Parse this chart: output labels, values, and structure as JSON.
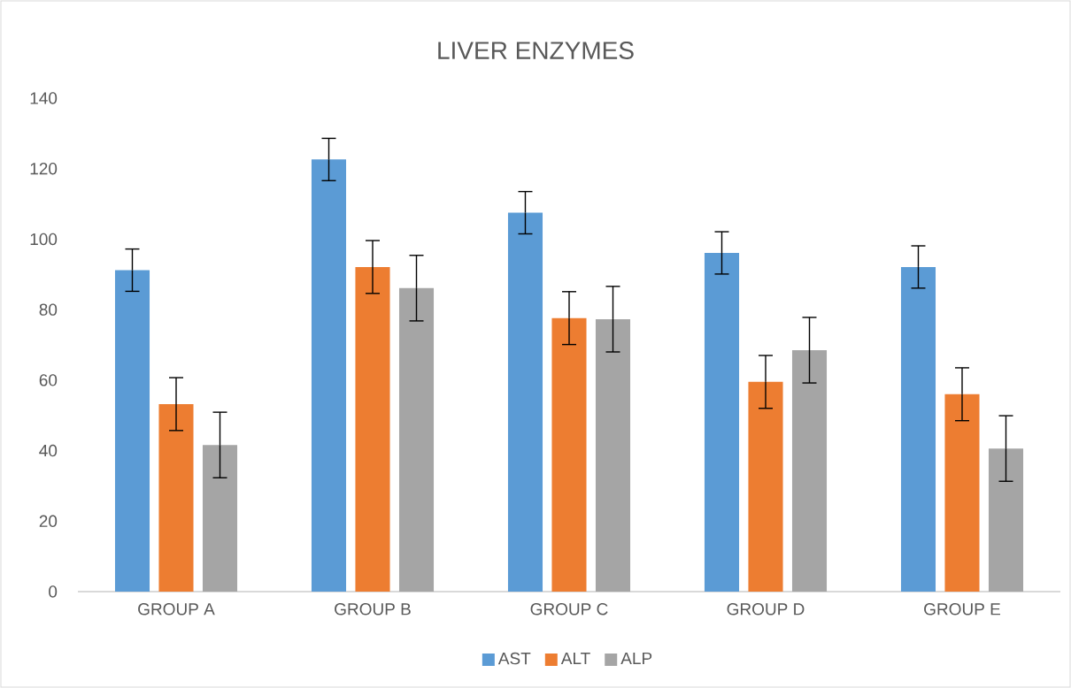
{
  "chart_data": {
    "type": "bar",
    "title": "LIVER ENZYMES",
    "categories": [
      "GROUP A",
      "GROUP B",
      "GROUP C",
      "GROUP D",
      "GROUP E"
    ],
    "series": [
      {
        "name": "AST",
        "color": "#5b9bd5",
        "values": [
          91.2,
          122.6,
          107.5,
          96.1,
          92.1
        ],
        "errors": [
          6,
          6,
          6,
          6,
          6
        ]
      },
      {
        "name": "ALT",
        "color": "#ed7d31",
        "values": [
          53.2,
          92.1,
          77.6,
          59.5,
          56.0
        ],
        "errors": [
          7.5,
          7.5,
          7.5,
          7.5,
          7.5
        ]
      },
      {
        "name": "ALP",
        "color": "#a5a5a5",
        "values": [
          41.6,
          86.1,
          77.3,
          68.5,
          40.6
        ],
        "errors": [
          9.3,
          9.3,
          9.3,
          9.3,
          9.3
        ]
      }
    ],
    "ylim": [
      0,
      140
    ],
    "yticks": [
      0,
      20,
      40,
      60,
      80,
      100,
      120,
      140
    ],
    "legend": "bottom"
  }
}
